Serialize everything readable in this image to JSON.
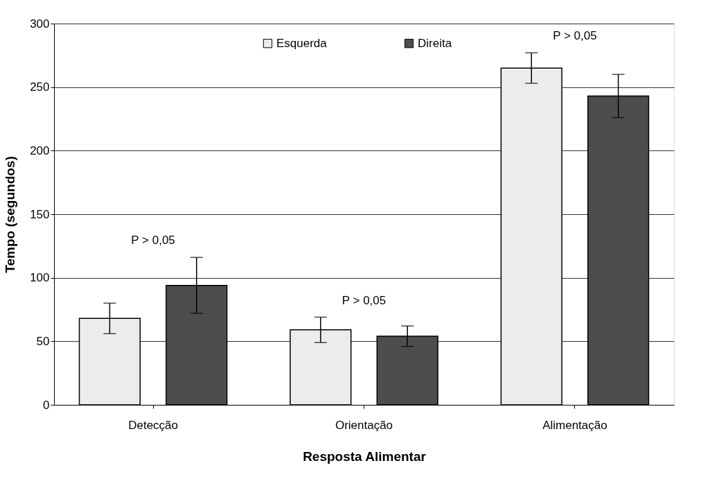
{
  "chart_data": {
    "type": "bar",
    "xlabel": "Resposta Alimentar",
    "ylabel": "Tempo (segundos)",
    "categories": [
      "Detecção",
      "Orientação",
      "Alimentação"
    ],
    "series": [
      {
        "name": "Esquerda",
        "color": "#ececec",
        "values": [
          68,
          59,
          265
        ],
        "errors": [
          12,
          10,
          12
        ]
      },
      {
        "name": "Direita",
        "color": "#4d4d4d",
        "values": [
          94,
          54,
          243
        ],
        "errors": [
          22,
          8,
          17
        ]
      }
    ],
    "ylim": [
      0,
      300
    ],
    "yticks": [
      0,
      50,
      100,
      150,
      200,
      250,
      300
    ],
    "grid": "y",
    "legend": "top",
    "annotations": [
      "P > 0,05",
      "P > 0,05",
      "P > 0,05"
    ]
  }
}
